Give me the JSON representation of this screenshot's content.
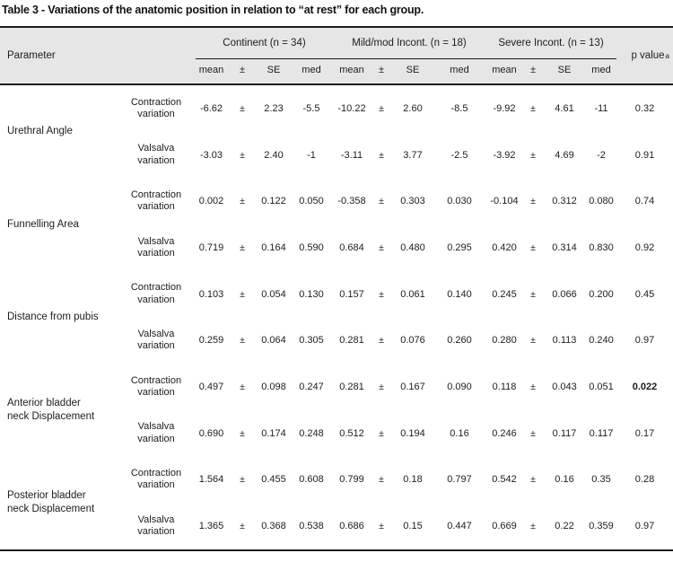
{
  "title": "Table 3 - Variations of the anatomic position in relation to “at rest” for each group.",
  "header": {
    "parameter": "Parameter",
    "groups": [
      "Continent (n = 34)",
      "Mild/mod Incont. (n = 18)",
      "Severe Incont. (n = 13)"
    ],
    "sub_columns": [
      "mean",
      "±",
      "SE",
      "med"
    ],
    "p_value_label": "p value",
    "p_value_note": "a"
  },
  "plus_minus": "±",
  "parameters": [
    {
      "name": "Urethral Angle",
      "rows": [
        {
          "variation": "Contraction variation",
          "groups": [
            [
              "-6.62",
              "2.23",
              "-5.5"
            ],
            [
              "-10.22",
              "2.60",
              "-8.5"
            ],
            [
              "-9.92",
              "4.61",
              "-11"
            ]
          ],
          "p": "0.32",
          "p_bold": false
        },
        {
          "variation": "Valsalva variation",
          "groups": [
            [
              "-3.03",
              "2.40",
              "-1"
            ],
            [
              "-3.11",
              "3.77",
              "-2.5"
            ],
            [
              "-3.92",
              "4.69",
              "-2"
            ]
          ],
          "p": "0.91",
          "p_bold": false
        }
      ]
    },
    {
      "name": "Funnelling Area",
      "rows": [
        {
          "variation": "Contraction variation",
          "groups": [
            [
              "0.002",
              "0.122",
              "0.050"
            ],
            [
              "-0.358",
              "0.303",
              "0.030"
            ],
            [
              "-0.104",
              "0.312",
              "0.080"
            ]
          ],
          "p": "0.74",
          "p_bold": false
        },
        {
          "variation": "Valsalva variation",
          "groups": [
            [
              "0.719",
              "0.164",
              "0.590"
            ],
            [
              "0.684",
              "0.480",
              "0.295"
            ],
            [
              "0.420",
              "0.314",
              "0.830"
            ]
          ],
          "p": "0.92",
          "p_bold": false
        }
      ]
    },
    {
      "name": "Distance from pubis",
      "rows": [
        {
          "variation": "Contraction variation",
          "groups": [
            [
              "0.103",
              "0.054",
              "0.130"
            ],
            [
              "0.157",
              "0.061",
              "0.140"
            ],
            [
              "0.245",
              "0.066",
              "0.200"
            ]
          ],
          "p": "0.45",
          "p_bold": false
        },
        {
          "variation": "Valsalva variation",
          "groups": [
            [
              "0.259",
              "0.064",
              "0.305"
            ],
            [
              "0.281",
              "0.076",
              "0.260"
            ],
            [
              "0.280",
              "0.113",
              "0.240"
            ]
          ],
          "p": "0.97",
          "p_bold": false
        }
      ]
    },
    {
      "name": "Anterior bladder neck Displacement",
      "rows": [
        {
          "variation": "Contraction variation",
          "groups": [
            [
              "0.497",
              "0.098",
              "0.247"
            ],
            [
              "0.281",
              "0.167",
              "0.090"
            ],
            [
              "0.118",
              "0.043",
              "0.051"
            ]
          ],
          "p": "0.022",
          "p_bold": true
        },
        {
          "variation": "Valsalva variation",
          "groups": [
            [
              "0.690",
              "0.174",
              "0.248"
            ],
            [
              "0.512",
              "0.194",
              "0.16"
            ],
            [
              "0.246",
              "0.117",
              "0.117"
            ]
          ],
          "p": "0.17",
          "p_bold": false
        }
      ]
    },
    {
      "name": "Posterior bladder neck Displacement",
      "rows": [
        {
          "variation": "Contraction variation",
          "groups": [
            [
              "1.564",
              "0.455",
              "0.608"
            ],
            [
              "0.799",
              "0.18",
              "0.797"
            ],
            [
              "0.542",
              "0.16",
              "0.35"
            ]
          ],
          "p": "0.28",
          "p_bold": false
        },
        {
          "variation": "Valsalva variation",
          "groups": [
            [
              "1.365",
              "0.368",
              "0.538"
            ],
            [
              "0.686",
              "0.15",
              "0.447"
            ],
            [
              "0.669",
              "0.22",
              "0.359"
            ]
          ],
          "p": "0.97",
          "p_bold": false
        }
      ]
    }
  ],
  "colors": {
    "header_bg": "#e6e6e6",
    "rule": "#1a1a1a",
    "text": "#1c1c1c"
  }
}
